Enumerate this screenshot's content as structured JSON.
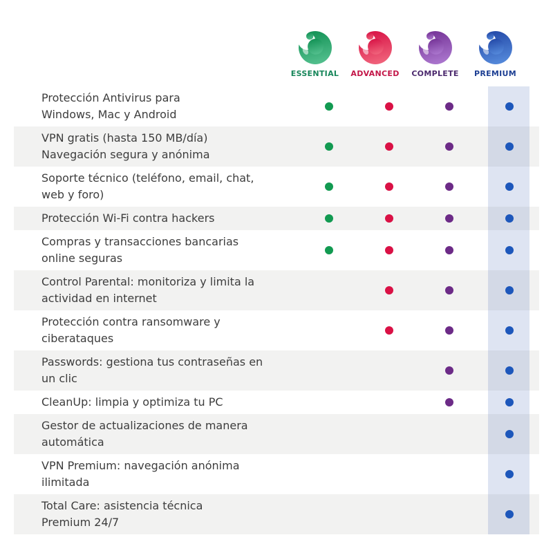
{
  "colors": {
    "page_bg": "#ffffff",
    "alt_row_bg": "#f2f2f1",
    "feature_text": "#3d3d3d",
    "premium_band": "rgba(70,105,185,0.18)"
  },
  "products": [
    {
      "id": "essential",
      "label": "ESSENTIAL",
      "label_color": "#17865a",
      "dot_color": "#129a51",
      "logo_top": "#0f8f52",
      "logo_bottom": "#50bd8b",
      "logo_icon": "panda-logo"
    },
    {
      "id": "advanced",
      "label": "ADVANCED",
      "label_color": "#c31648",
      "dot_color": "#da1145",
      "logo_top": "#d60f43",
      "logo_bottom": "#ef6079",
      "logo_icon": "panda-logo"
    },
    {
      "id": "complete",
      "label": "COMPLETE",
      "label_color": "#4c2a6e",
      "dot_color": "#6c2b87",
      "logo_top": "#723094",
      "logo_bottom": "#a873cb",
      "logo_icon": "panda-logo"
    },
    {
      "id": "premium",
      "label": "PREMIUM",
      "label_color": "#1d3f93",
      "dot_color": "#1d57bb",
      "logo_top": "#2146a5",
      "logo_bottom": "#5286d8",
      "logo_icon": "panda-logo"
    }
  ],
  "rows": [
    {
      "lines": [
        "Protección Antivirus para",
        "Windows, Mac y Android"
      ],
      "available": [
        "essential",
        "advanced",
        "complete",
        "premium"
      ]
    },
    {
      "lines": [
        "VPN gratis (hasta 150 MB/día)",
        "Navegación segura y anónima"
      ],
      "available": [
        "essential",
        "advanced",
        "complete",
        "premium"
      ]
    },
    {
      "lines": [
        "Soporte técnico (teléfono, email, chat,",
        "web y foro)"
      ],
      "available": [
        "essential",
        "advanced",
        "complete",
        "premium"
      ]
    },
    {
      "lines": [
        "Protección Wi-Fi contra hackers"
      ],
      "available": [
        "essential",
        "advanced",
        "complete",
        "premium"
      ]
    },
    {
      "lines": [
        "Compras y transacciones bancarias",
        "online seguras"
      ],
      "available": [
        "essential",
        "advanced",
        "complete",
        "premium"
      ]
    },
    {
      "lines": [
        "Control Parental: monitoriza y limita la",
        "actividad en internet"
      ],
      "available": [
        "advanced",
        "complete",
        "premium"
      ]
    },
    {
      "lines": [
        "Protección contra ransomware y",
        "ciberataques"
      ],
      "available": [
        "advanced",
        "complete",
        "premium"
      ]
    },
    {
      "lines": [
        "Passwords: gestiona tus contraseñas en",
        "un clic"
      ],
      "available": [
        "complete",
        "premium"
      ]
    },
    {
      "lines": [
        "CleanUp: limpia y optimiza tu PC"
      ],
      "available": [
        "complete",
        "premium"
      ]
    },
    {
      "lines": [
        "Gestor de actualizaciones de manera",
        "automática"
      ],
      "available": [
        "premium"
      ]
    },
    {
      "lines": [
        "VPN Premium: navegación anónima",
        "ilimitada"
      ],
      "available": [
        "premium"
      ]
    },
    {
      "lines": [
        "Total Care: asistencia técnica",
        "Premium 24/7"
      ],
      "available": [
        "premium"
      ]
    }
  ]
}
